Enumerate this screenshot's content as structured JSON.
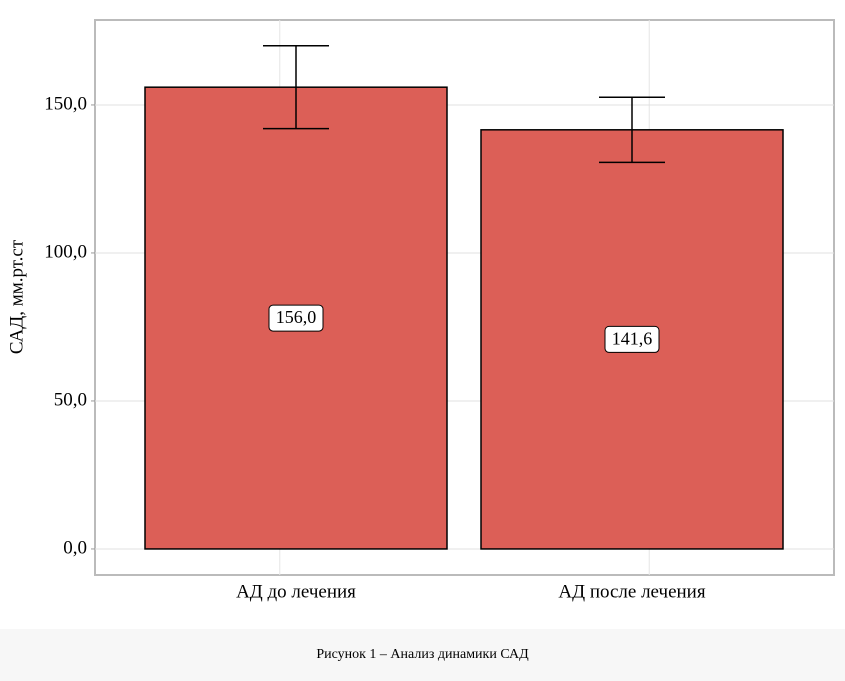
{
  "chart_data": {
    "type": "bar",
    "y_label": "САД, мм.рт.ст",
    "categories": [
      "АД до лечения",
      "АД после лечения"
    ],
    "values": [
      156.0,
      141.6
    ],
    "value_labels": [
      "156,0",
      "141,6"
    ],
    "errors": [
      14,
      11
    ],
    "color": "#dc5f57",
    "ylim": [
      -8.8,
      178.7
    ],
    "yticks": [
      {
        "value": 0,
        "label": "0,0"
      },
      {
        "value": 50,
        "label": "50,0"
      },
      {
        "value": 100,
        "label": "100,0"
      },
      {
        "value": 150,
        "label": "150,0"
      }
    ],
    "grid": true
  },
  "caption": "Рисунок 1 – Анализ динамики САД"
}
